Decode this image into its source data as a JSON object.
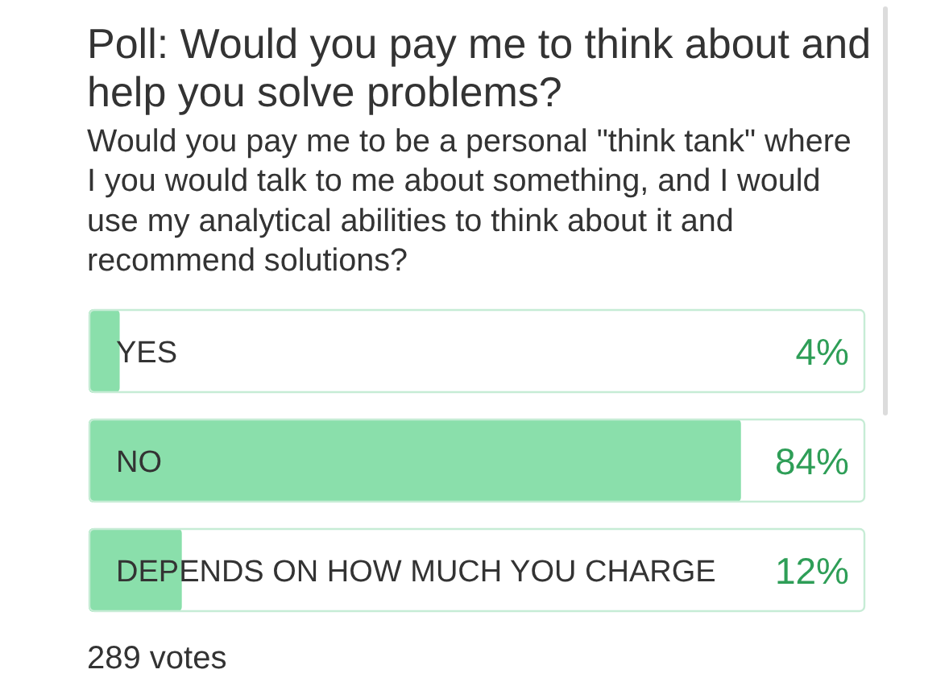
{
  "chart_data": {
    "type": "bar",
    "orientation": "horizontal",
    "title": "Poll: Would you pay me to think about and help you solve problems?",
    "subtitle": "Would you pay me to be a personal \"think tank\" where I you would talk to me about something, and I would use my analytical abilities to think about it and recommend solutions?",
    "categories": [
      "YES",
      "NO",
      "DEPENDS ON HOW MUCH YOU CHARGE"
    ],
    "values": [
      4,
      84,
      12
    ],
    "value_labels": [
      "4%",
      "84%",
      "12%"
    ],
    "color": "#8adfab",
    "xlim": [
      0,
      100
    ],
    "tick_labels": "y",
    "annotations": [
      "289 votes"
    ]
  }
}
